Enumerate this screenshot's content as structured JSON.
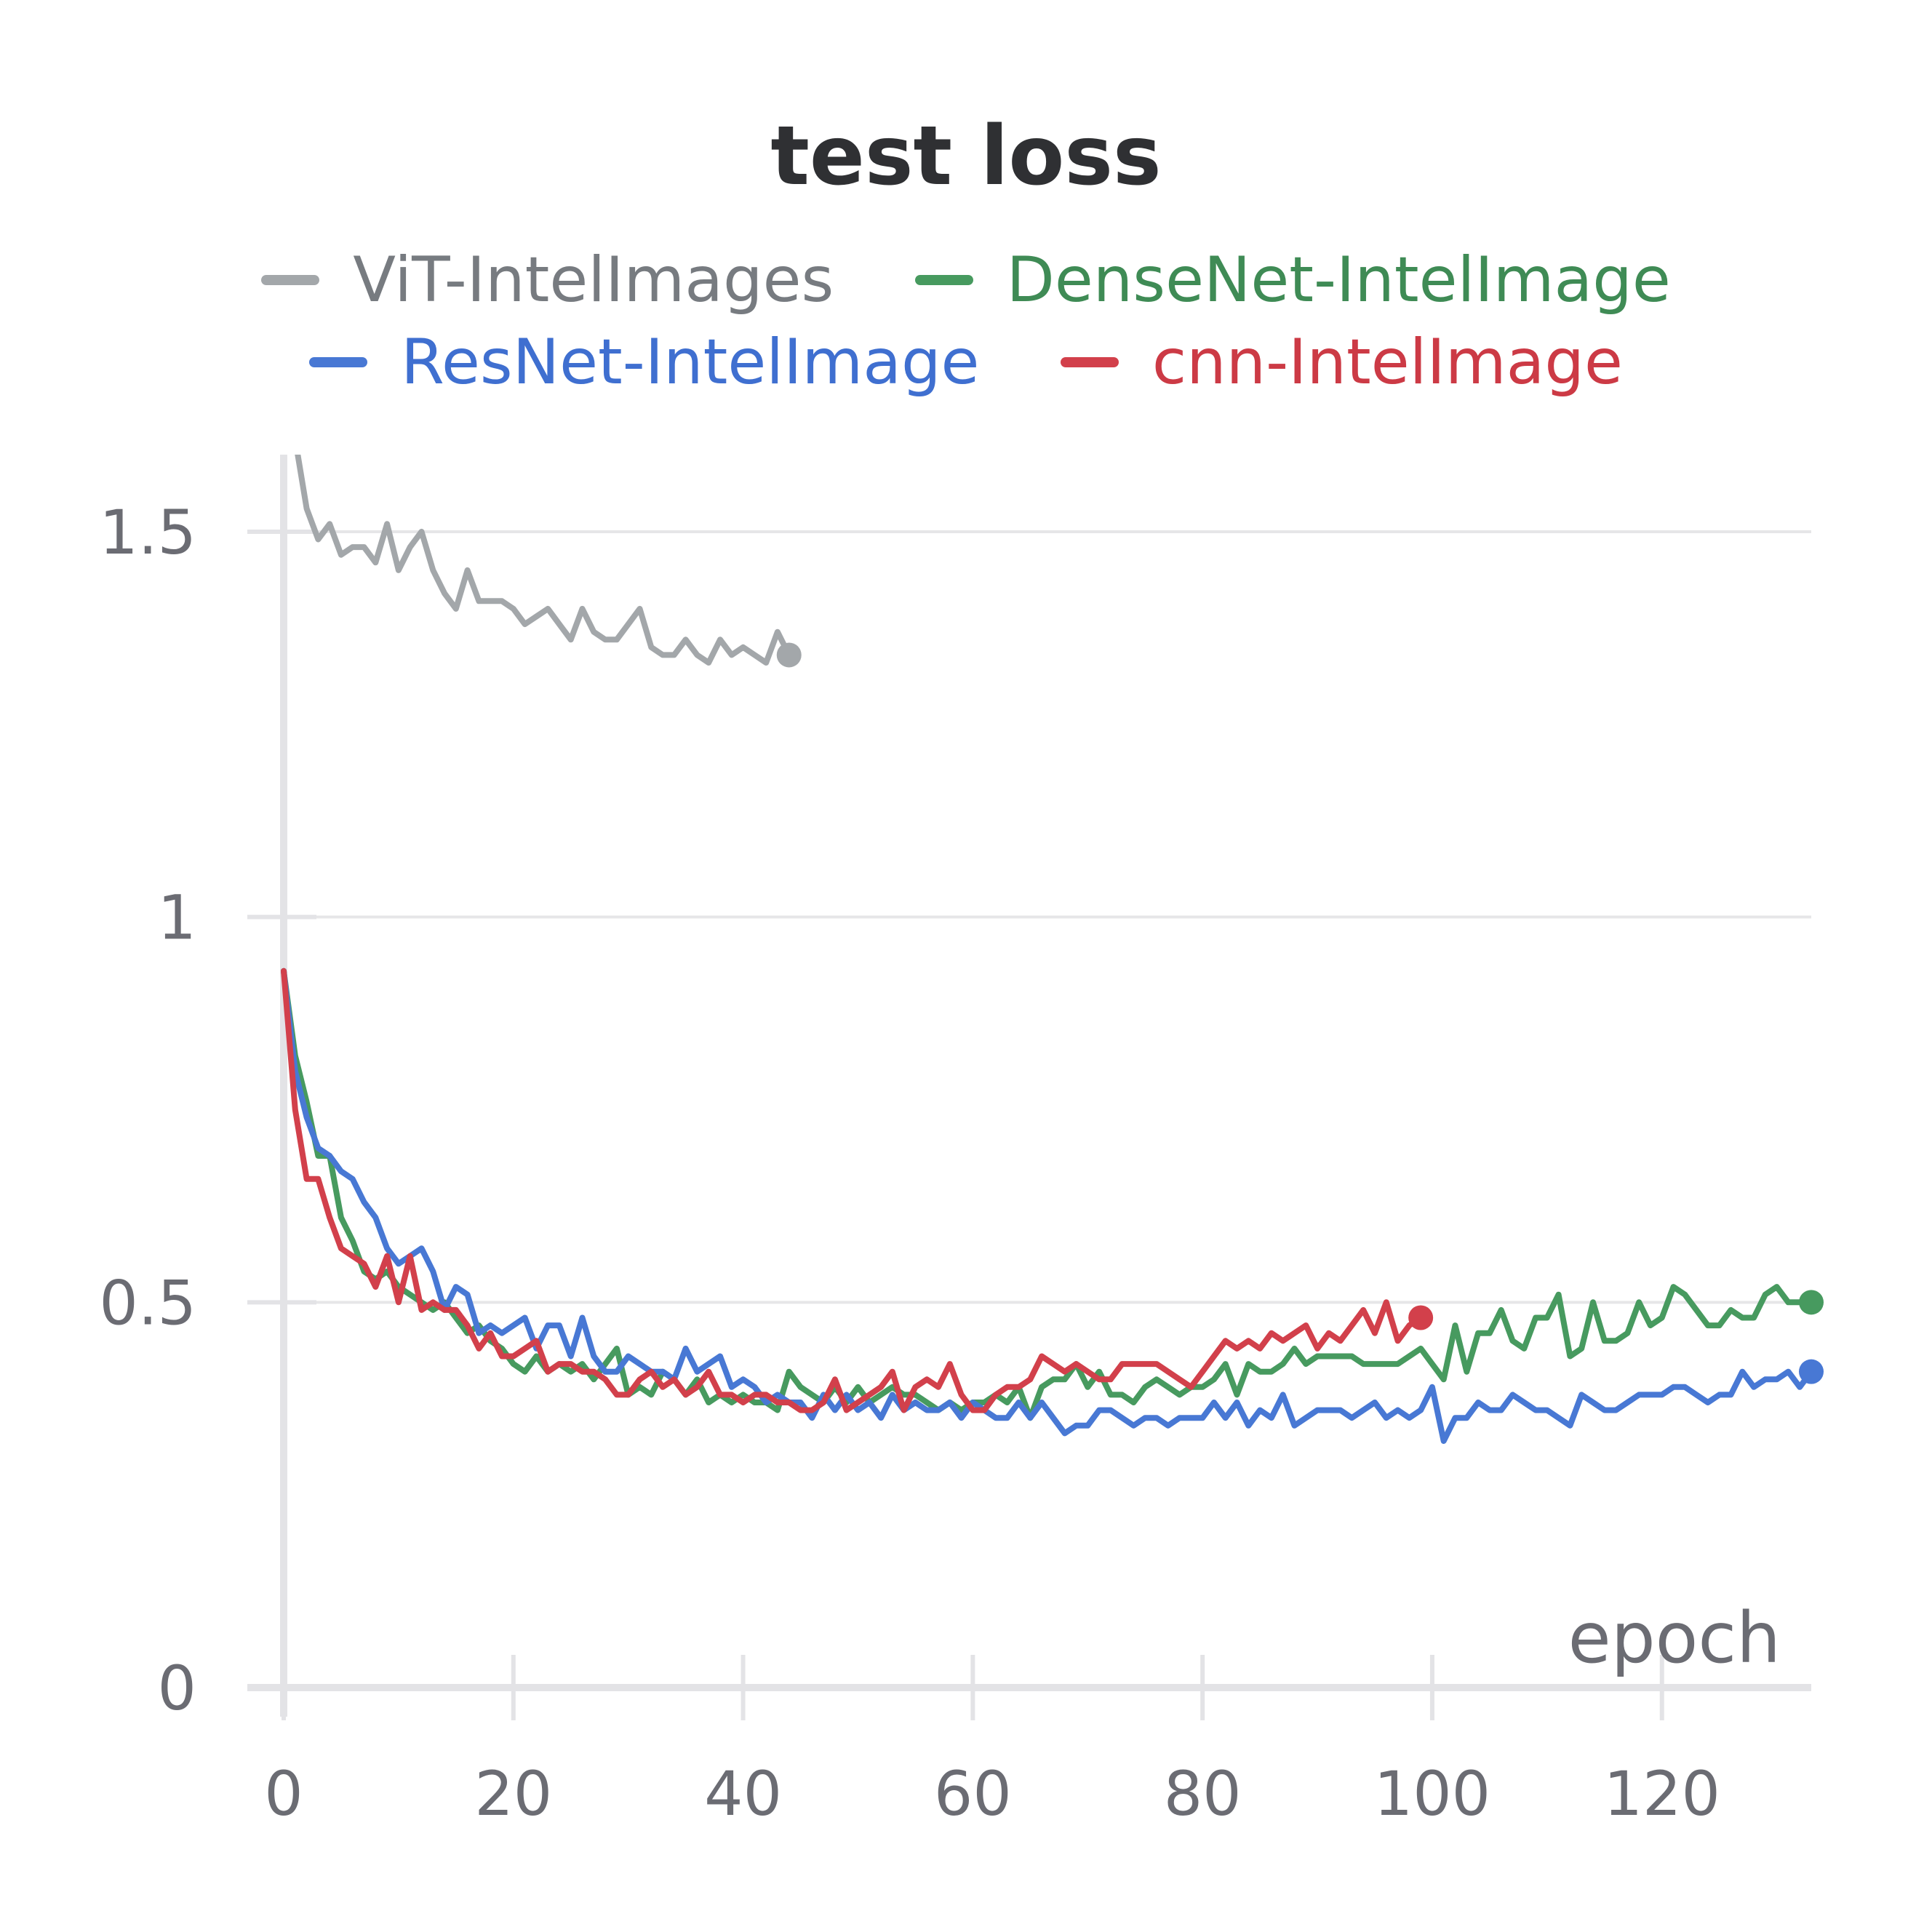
{
  "chart_data": {
    "type": "line",
    "title": "test loss",
    "xlabel": "epoch",
    "ylabel": "",
    "xlim": [
      0,
      133
    ],
    "ylim": [
      0,
      1.6
    ],
    "x_ticks": [
      0,
      20,
      40,
      60,
      80,
      100,
      120
    ],
    "x_tick_labels": [
      "0",
      "20",
      "40",
      "60",
      "80",
      "100",
      "120"
    ],
    "y_ticks": [
      0,
      0.5,
      1,
      1.5
    ],
    "y_tick_labels": [
      "0",
      "0.5",
      "1",
      "1.5"
    ],
    "grid": "horizontal",
    "legend_position": "top-center",
    "series": [
      {
        "name": "ViT-IntelImages",
        "color": "#a3a7aa",
        "x": [
          0,
          1,
          2,
          3,
          4,
          5,
          6,
          7,
          8,
          9,
          10,
          11,
          12,
          13,
          14,
          15,
          16,
          17,
          18,
          19,
          20,
          21,
          22,
          23,
          24,
          25,
          26,
          27,
          28,
          29,
          30,
          31,
          32,
          33,
          34,
          35,
          36,
          37,
          38,
          39,
          40,
          41,
          42,
          43,
          44
        ],
        "values": [
          1.65,
          1.62,
          1.53,
          1.49,
          1.51,
          1.47,
          1.48,
          1.48,
          1.46,
          1.51,
          1.45,
          1.48,
          1.5,
          1.45,
          1.42,
          1.4,
          1.45,
          1.41,
          1.41,
          1.41,
          1.4,
          1.38,
          1.39,
          1.4,
          1.38,
          1.36,
          1.4,
          1.37,
          1.36,
          1.36,
          1.38,
          1.4,
          1.35,
          1.34,
          1.34,
          1.36,
          1.34,
          1.33,
          1.36,
          1.34,
          1.35,
          1.34,
          1.33,
          1.37,
          1.34
        ]
      },
      {
        "name": "DenseNet-IntelImage",
        "color": "#479a5f",
        "x": [
          0,
          1,
          2,
          3,
          4,
          5,
          6,
          7,
          8,
          9,
          10,
          11,
          12,
          13,
          14,
          15,
          16,
          17,
          18,
          19,
          20,
          21,
          22,
          23,
          24,
          25,
          26,
          27,
          28,
          29,
          30,
          31,
          32,
          33,
          34,
          35,
          36,
          37,
          38,
          39,
          40,
          41,
          42,
          43,
          44,
          45,
          46,
          47,
          48,
          49,
          50,
          51,
          52,
          53,
          54,
          55,
          56,
          57,
          58,
          59,
          60,
          61,
          62,
          63,
          64,
          65,
          66,
          67,
          68,
          69,
          70,
          71,
          72,
          73,
          74,
          75,
          76,
          77,
          78,
          79,
          80,
          81,
          82,
          83,
          84,
          85,
          86,
          87,
          88,
          89,
          90,
          91,
          92,
          93,
          94,
          95,
          96,
          97,
          98,
          99,
          100,
          101,
          102,
          103,
          104,
          105,
          106,
          107,
          108,
          109,
          110,
          111,
          112,
          113,
          114,
          115,
          116,
          117,
          118,
          119,
          120,
          121,
          122,
          123,
          124,
          125,
          126,
          127,
          128,
          129,
          130,
          131,
          132,
          133
        ],
        "values": [
          0.93,
          0.82,
          0.76,
          0.69,
          0.69,
          0.61,
          0.58,
          0.54,
          0.53,
          0.54,
          0.52,
          0.51,
          0.5,
          0.49,
          0.5,
          0.48,
          0.46,
          0.47,
          0.45,
          0.44,
          0.42,
          0.41,
          0.43,
          0.41,
          0.42,
          0.41,
          0.42,
          0.4,
          0.42,
          0.44,
          0.38,
          0.39,
          0.38,
          0.41,
          0.4,
          0.38,
          0.4,
          0.37,
          0.38,
          0.37,
          0.38,
          0.37,
          0.37,
          0.36,
          0.41,
          0.39,
          0.38,
          0.37,
          0.39,
          0.37,
          0.39,
          0.37,
          0.38,
          0.39,
          0.38,
          0.38,
          0.37,
          0.36,
          0.37,
          0.36,
          0.37,
          0.37,
          0.38,
          0.37,
          0.39,
          0.35,
          0.39,
          0.4,
          0.4,
          0.42,
          0.39,
          0.41,
          0.38,
          0.38,
          0.37,
          0.39,
          0.4,
          0.39,
          0.38,
          0.39,
          0.39,
          0.4,
          0.42,
          0.38,
          0.42,
          0.41,
          0.41,
          0.42,
          0.44,
          0.42,
          0.43,
          0.43,
          0.43,
          0.43,
          0.42,
          0.42,
          0.42,
          0.42,
          0.43,
          0.44,
          0.42,
          0.4,
          0.47,
          0.41,
          0.46,
          0.46,
          0.49,
          0.45,
          0.44,
          0.48,
          0.48,
          0.51,
          0.43,
          0.44,
          0.5,
          0.45,
          0.45,
          0.46,
          0.5,
          0.47,
          0.48,
          0.52,
          0.51,
          0.49,
          0.47,
          0.47,
          0.49,
          0.48,
          0.48,
          0.51,
          0.52,
          0.5,
          0.5,
          0.5
        ]
      },
      {
        "name": "ResNet-IntelImage",
        "color": "#4878d4",
        "x": [
          0,
          1,
          2,
          3,
          4,
          5,
          6,
          7,
          8,
          9,
          10,
          11,
          12,
          13,
          14,
          15,
          16,
          17,
          18,
          19,
          20,
          21,
          22,
          23,
          24,
          25,
          26,
          27,
          28,
          29,
          30,
          31,
          32,
          33,
          34,
          35,
          36,
          37,
          38,
          39,
          40,
          41,
          42,
          43,
          44,
          45,
          46,
          47,
          48,
          49,
          50,
          51,
          52,
          53,
          54,
          55,
          56,
          57,
          58,
          59,
          60,
          61,
          62,
          63,
          64,
          65,
          66,
          67,
          68,
          69,
          70,
          71,
          72,
          73,
          74,
          75,
          76,
          77,
          78,
          79,
          80,
          81,
          82,
          83,
          84,
          85,
          86,
          87,
          88,
          89,
          90,
          91,
          92,
          93,
          94,
          95,
          96,
          97,
          98,
          99,
          100,
          101,
          102,
          103,
          104,
          105,
          106,
          107,
          108,
          109,
          110,
          111,
          112,
          113,
          114,
          115,
          116,
          117,
          118,
          119,
          120,
          121,
          122,
          123,
          124,
          125,
          126,
          127,
          128,
          129,
          130,
          131,
          132,
          133
        ],
        "values": [
          0.93,
          0.8,
          0.74,
          0.7,
          0.69,
          0.67,
          0.66,
          0.63,
          0.61,
          0.57,
          0.55,
          0.56,
          0.57,
          0.54,
          0.49,
          0.52,
          0.51,
          0.46,
          0.47,
          0.46,
          0.47,
          0.48,
          0.44,
          0.47,
          0.47,
          0.43,
          0.48,
          0.43,
          0.41,
          0.41,
          0.43,
          0.42,
          0.41,
          0.41,
          0.4,
          0.44,
          0.41,
          0.42,
          0.43,
          0.39,
          0.4,
          0.39,
          0.37,
          0.38,
          0.37,
          0.37,
          0.35,
          0.38,
          0.36,
          0.38,
          0.36,
          0.37,
          0.35,
          0.38,
          0.36,
          0.37,
          0.36,
          0.36,
          0.37,
          0.35,
          0.37,
          0.36,
          0.35,
          0.35,
          0.37,
          0.35,
          0.37,
          0.35,
          0.33,
          0.34,
          0.34,
          0.36,
          0.36,
          0.35,
          0.34,
          0.35,
          0.35,
          0.34,
          0.35,
          0.35,
          0.35,
          0.37,
          0.35,
          0.37,
          0.34,
          0.36,
          0.35,
          0.38,
          0.34,
          0.35,
          0.36,
          0.36,
          0.36,
          0.35,
          0.36,
          0.37,
          0.35,
          0.36,
          0.35,
          0.36,
          0.39,
          0.32,
          0.35,
          0.35,
          0.37,
          0.36,
          0.36,
          0.38,
          0.37,
          0.36,
          0.36,
          0.35,
          0.34,
          0.38,
          0.37,
          0.36,
          0.36,
          0.37,
          0.38,
          0.38,
          0.38,
          0.39,
          0.39,
          0.38,
          0.37,
          0.38,
          0.38,
          0.41,
          0.39,
          0.4,
          0.4,
          0.41,
          0.39,
          0.41
        ]
      },
      {
        "name": "cnn-IntelImage",
        "color": "#d2404b",
        "x": [
          0,
          1,
          2,
          3,
          4,
          5,
          6,
          7,
          8,
          9,
          10,
          11,
          12,
          13,
          14,
          15,
          16,
          17,
          18,
          19,
          20,
          21,
          22,
          23,
          24,
          25,
          26,
          27,
          28,
          29,
          30,
          31,
          32,
          33,
          34,
          35,
          36,
          37,
          38,
          39,
          40,
          41,
          42,
          43,
          44,
          45,
          46,
          47,
          48,
          49,
          50,
          51,
          52,
          53,
          54,
          55,
          56,
          57,
          58,
          59,
          60,
          61,
          62,
          63,
          64,
          65,
          66,
          67,
          68,
          69,
          70,
          71,
          72,
          73,
          74,
          75,
          76,
          77,
          78,
          79,
          80,
          81,
          82,
          83,
          84,
          85,
          86,
          87,
          88,
          89,
          90,
          91,
          92,
          93,
          94,
          95,
          96,
          97,
          98,
          99
        ],
        "values": [
          0.93,
          0.75,
          0.66,
          0.66,
          0.61,
          0.57,
          0.56,
          0.55,
          0.52,
          0.56,
          0.5,
          0.56,
          0.49,
          0.5,
          0.49,
          0.49,
          0.47,
          0.44,
          0.46,
          0.43,
          0.43,
          0.44,
          0.45,
          0.41,
          0.42,
          0.42,
          0.41,
          0.41,
          0.4,
          0.38,
          0.38,
          0.4,
          0.41,
          0.39,
          0.4,
          0.38,
          0.39,
          0.41,
          0.38,
          0.38,
          0.37,
          0.38,
          0.38,
          0.37,
          0.37,
          0.36,
          0.36,
          0.37,
          0.4,
          0.36,
          0.37,
          0.38,
          0.39,
          0.41,
          0.36,
          0.39,
          0.4,
          0.39,
          0.42,
          0.38,
          0.36,
          0.36,
          0.38,
          0.39,
          0.39,
          0.4,
          0.43,
          0.42,
          0.41,
          0.42,
          0.41,
          0.4,
          0.4,
          0.42,
          0.42,
          0.42,
          0.42,
          0.41,
          0.4,
          0.39,
          0.41,
          0.43,
          0.45,
          0.44,
          0.45,
          0.44,
          0.46,
          0.45,
          0.46,
          0.47,
          0.44,
          0.46,
          0.45,
          0.47,
          0.49,
          0.46,
          0.5,
          0.45,
          0.47,
          0.48
        ]
      }
    ]
  }
}
